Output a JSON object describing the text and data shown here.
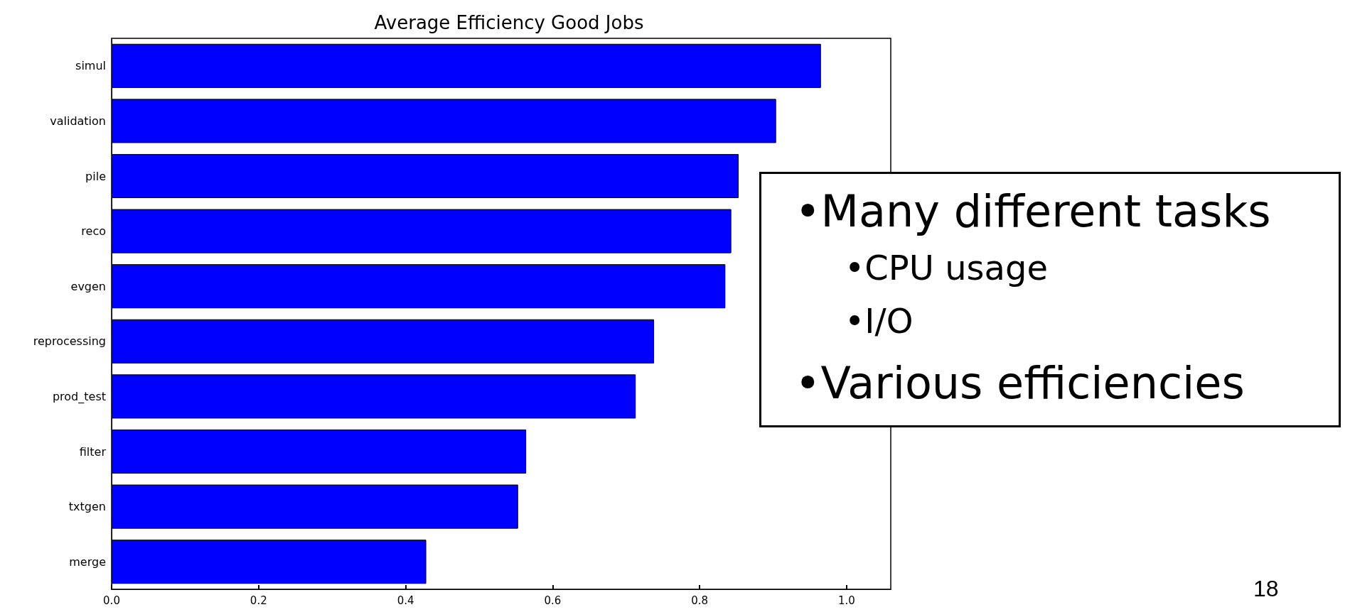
{
  "chart_data": {
    "type": "bar",
    "orientation": "horizontal",
    "title": "Average Efficiency Good Jobs",
    "categories": [
      "simul",
      "validation",
      "pile",
      "reco",
      "evgen",
      "reprocessing",
      "prod_test",
      "filter",
      "txtgen",
      "merge"
    ],
    "values": [
      0.965,
      0.904,
      0.853,
      0.843,
      0.835,
      0.738,
      0.713,
      0.564,
      0.553,
      0.428
    ],
    "color": "#0000ff",
    "xlim": [
      0,
      1.06
    ],
    "xticks": [
      {
        "value": 0,
        "label": "0.0"
      },
      {
        "value": 0.2,
        "label": "0.2"
      },
      {
        "value": 0.4,
        "label": "0.4"
      },
      {
        "value": 0.6,
        "label": "0.6"
      },
      {
        "value": 0.8,
        "label": "0.8"
      },
      {
        "value": 1,
        "label": "1.0"
      }
    ],
    "grid": false,
    "annotations": [
      "•Many different tasks",
      "•CPU usage",
      "•I/O",
      "•Various efficiencies",
      "18"
    ]
  }
}
